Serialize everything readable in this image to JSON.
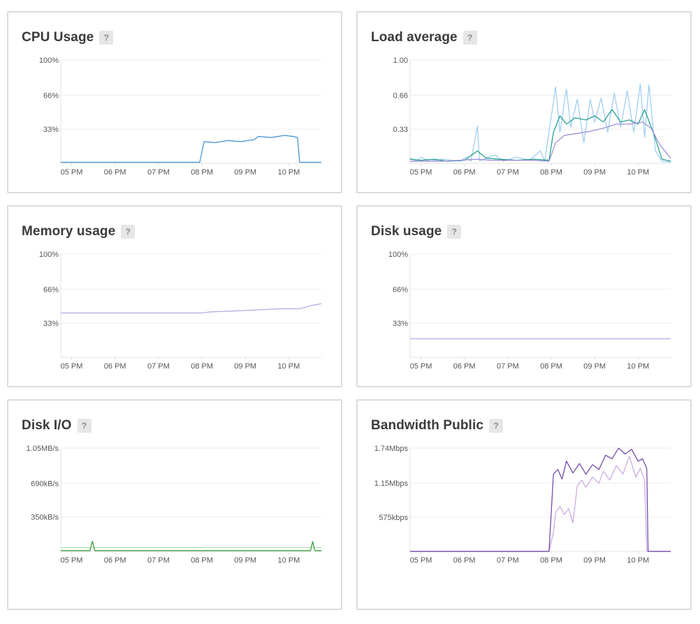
{
  "panels": [
    {
      "key": "cpu",
      "title": "CPU Usage",
      "help": "?",
      "chart_data": {
        "type": "line",
        "x_ticks": [
          "05 PM",
          "06 PM",
          "07 PM",
          "08 PM",
          "09 PM",
          "10 PM"
        ],
        "y_ticks": [
          "100%",
          "66%",
          "33%"
        ],
        "ylim": [
          0,
          100
        ],
        "y_tick_values": [
          100,
          66,
          33
        ],
        "x_ticks_hours": [
          17,
          18,
          19,
          20,
          21,
          22
        ],
        "xlim_hours": [
          16.75,
          22.75
        ],
        "grid": true,
        "series": [
          {
            "color": "#3f8fd6",
            "points": [
              [
                16.75,
                1
              ],
              [
                17.5,
                1
              ],
              [
                18.5,
                1
              ],
              [
                19.5,
                1
              ],
              [
                19.95,
                1
              ],
              [
                20.05,
                21
              ],
              [
                20.3,
                20
              ],
              [
                20.6,
                22
              ],
              [
                20.9,
                21
              ],
              [
                21.2,
                23
              ],
              [
                21.3,
                26
              ],
              [
                21.6,
                25
              ],
              [
                21.9,
                27
              ],
              [
                22.1,
                26
              ],
              [
                22.2,
                25
              ],
              [
                22.25,
                1
              ],
              [
                22.75,
                1
              ]
            ]
          }
        ]
      }
    },
    {
      "key": "load",
      "title": "Load average",
      "help": "?",
      "chart_data": {
        "type": "line",
        "x_ticks": [
          "05 PM",
          "06 PM",
          "07 PM",
          "08 PM",
          "09 PM",
          "10 PM"
        ],
        "y_ticks": [
          "1.00",
          "0.66",
          "0.33"
        ],
        "ylim": [
          0,
          1
        ],
        "y_tick_values": [
          1.0,
          0.66,
          0.33
        ],
        "x_ticks_hours": [
          17,
          18,
          19,
          20,
          21,
          22
        ],
        "xlim_hours": [
          16.75,
          22.75
        ],
        "grid": true,
        "series": [
          {
            "color": "#9ccbef",
            "points": [
              [
                16.75,
                0.05
              ],
              [
                16.9,
                0.02
              ],
              [
                17.0,
                0.06
              ],
              [
                17.2,
                0.02
              ],
              [
                17.5,
                0.04
              ],
              [
                17.9,
                0.02
              ],
              [
                18.05,
                0.06
              ],
              [
                18.15,
                0.02
              ],
              [
                18.3,
                0.36
              ],
              [
                18.35,
                0.02
              ],
              [
                18.5,
                0.05
              ],
              [
                18.7,
                0.08
              ],
              [
                18.9,
                0.02
              ],
              [
                19.2,
                0.06
              ],
              [
                19.5,
                0.03
              ],
              [
                19.75,
                0.12
              ],
              [
                19.85,
                0.02
              ],
              [
                20.0,
                0.45
              ],
              [
                20.1,
                0.74
              ],
              [
                20.2,
                0.3
              ],
              [
                20.35,
                0.72
              ],
              [
                20.45,
                0.35
              ],
              [
                20.6,
                0.62
              ],
              [
                20.75,
                0.2
              ],
              [
                20.9,
                0.62
              ],
              [
                21.0,
                0.4
              ],
              [
                21.15,
                0.63
              ],
              [
                21.3,
                0.3
              ],
              [
                21.45,
                0.68
              ],
              [
                21.6,
                0.35
              ],
              [
                21.75,
                0.7
              ],
              [
                21.9,
                0.3
              ],
              [
                22.05,
                0.77
              ],
              [
                22.15,
                0.25
              ],
              [
                22.25,
                0.76
              ],
              [
                22.4,
                0.12
              ],
              [
                22.55,
                0.02
              ],
              [
                22.75,
                0.01
              ]
            ]
          },
          {
            "color": "#1a9c8c",
            "points": [
              [
                16.75,
                0.04
              ],
              [
                17.0,
                0.03
              ],
              [
                17.3,
                0.04
              ],
              [
                17.6,
                0.02
              ],
              [
                18.0,
                0.03
              ],
              [
                18.3,
                0.12
              ],
              [
                18.5,
                0.05
              ],
              [
                18.8,
                0.04
              ],
              [
                19.2,
                0.03
              ],
              [
                19.6,
                0.04
              ],
              [
                19.95,
                0.03
              ],
              [
                20.05,
                0.3
              ],
              [
                20.2,
                0.46
              ],
              [
                20.35,
                0.38
              ],
              [
                20.55,
                0.44
              ],
              [
                20.8,
                0.42
              ],
              [
                21.0,
                0.46
              ],
              [
                21.2,
                0.4
              ],
              [
                21.4,
                0.52
              ],
              [
                21.6,
                0.4
              ],
              [
                21.8,
                0.42
              ],
              [
                22.0,
                0.38
              ],
              [
                22.15,
                0.52
              ],
              [
                22.35,
                0.3
              ],
              [
                22.55,
                0.04
              ],
              [
                22.75,
                0.02
              ]
            ]
          },
          {
            "color": "#9b87d4",
            "points": [
              [
                16.75,
                0.02
              ],
              [
                17.5,
                0.02
              ],
              [
                18.3,
                0.04
              ],
              [
                18.6,
                0.03
              ],
              [
                19.5,
                0.03
              ],
              [
                19.95,
                0.02
              ],
              [
                20.1,
                0.2
              ],
              [
                20.3,
                0.27
              ],
              [
                20.6,
                0.29
              ],
              [
                20.9,
                0.31
              ],
              [
                21.2,
                0.34
              ],
              [
                21.5,
                0.38
              ],
              [
                21.8,
                0.38
              ],
              [
                22.1,
                0.4
              ],
              [
                22.3,
                0.34
              ],
              [
                22.5,
                0.18
              ],
              [
                22.75,
                0.05
              ]
            ]
          }
        ]
      }
    },
    {
      "key": "mem",
      "title": "Memory usage",
      "help": "?",
      "chart_data": {
        "type": "line",
        "x_ticks": [
          "05 PM",
          "06 PM",
          "07 PM",
          "08 PM",
          "09 PM",
          "10 PM"
        ],
        "y_ticks": [
          "100%",
          "66%",
          "33%"
        ],
        "ylim": [
          0,
          100
        ],
        "y_tick_values": [
          100,
          66,
          33
        ],
        "x_ticks_hours": [
          17,
          18,
          19,
          20,
          21,
          22
        ],
        "xlim_hours": [
          16.75,
          22.75
        ],
        "grid": true,
        "series": [
          {
            "color": "#b7a7e3",
            "points": [
              [
                16.75,
                43
              ],
              [
                17.5,
                43
              ],
              [
                18.5,
                43
              ],
              [
                19.5,
                43
              ],
              [
                20.0,
                43
              ],
              [
                20.2,
                44
              ],
              [
                20.8,
                45
              ],
              [
                21.3,
                46
              ],
              [
                21.8,
                47
              ],
              [
                22.25,
                47
              ],
              [
                22.5,
                50
              ],
              [
                22.75,
                52
              ]
            ]
          }
        ]
      }
    },
    {
      "key": "disk",
      "title": "Disk usage",
      "help": "?",
      "chart_data": {
        "type": "line",
        "x_ticks": [
          "05 PM",
          "06 PM",
          "07 PM",
          "08 PM",
          "09 PM",
          "10 PM"
        ],
        "y_ticks": [
          "100%",
          "66%",
          "33%"
        ],
        "ylim": [
          0,
          100
        ],
        "y_tick_values": [
          100,
          66,
          33
        ],
        "x_ticks_hours": [
          17,
          18,
          19,
          20,
          21,
          22
        ],
        "xlim_hours": [
          16.75,
          22.75
        ],
        "grid": true,
        "series": [
          {
            "color": "#b7a7e3",
            "points": [
              [
                16.75,
                18
              ],
              [
                22.75,
                18
              ]
            ]
          }
        ]
      }
    },
    {
      "key": "io",
      "title": "Disk I/O",
      "help": "?",
      "chart_data": {
        "type": "line",
        "x_ticks": [
          "05 PM",
          "06 PM",
          "07 PM",
          "08 PM",
          "09 PM",
          "10 PM"
        ],
        "y_ticks": [
          "1.05MB/s",
          "690kB/s",
          "350kB/s"
        ],
        "ylim_kBps": [
          0,
          1050
        ],
        "y_tick_values": [
          1050,
          690,
          350
        ],
        "x_ticks_hours": [
          17,
          18,
          19,
          20,
          21,
          22
        ],
        "xlim_hours": [
          16.75,
          22.75
        ],
        "grid": true,
        "series": [
          {
            "color": "#b5dcae",
            "points": [
              [
                16.75,
                38
              ],
              [
                17.5,
                38
              ],
              [
                18.5,
                38
              ],
              [
                19.5,
                38
              ],
              [
                20.05,
                38
              ],
              [
                20.1,
                42
              ],
              [
                21.0,
                42
              ],
              [
                22.0,
                42
              ],
              [
                22.75,
                40
              ]
            ]
          },
          {
            "color": "#2e9b2e",
            "points": [
              [
                16.75,
                8
              ],
              [
                17.42,
                8
              ],
              [
                17.48,
                105
              ],
              [
                17.53,
                8
              ],
              [
                18.5,
                8
              ],
              [
                19.5,
                8
              ],
              [
                20.5,
                8
              ],
              [
                21.5,
                8
              ],
              [
                22.5,
                8
              ],
              [
                22.55,
                100
              ],
              [
                22.6,
                8
              ],
              [
                22.75,
                8
              ]
            ]
          }
        ]
      }
    },
    {
      "key": "bw",
      "title": "Bandwidth Public",
      "help": "?",
      "chart_data": {
        "type": "line",
        "x_ticks": [
          "05 PM",
          "06 PM",
          "07 PM",
          "08 PM",
          "09 PM",
          "10 PM"
        ],
        "y_ticks": [
          "1.74Mbps",
          "1.15Mbps",
          "575kbps"
        ],
        "ylim_kbps": [
          0,
          1740
        ],
        "y_tick_values": [
          1740,
          1150,
          575
        ],
        "x_ticks_hours": [
          17,
          18,
          19,
          20,
          21,
          22
        ],
        "xlim_hours": [
          16.75,
          22.75
        ],
        "grid": true,
        "series": [
          {
            "color": "#c8a7dc",
            "points": [
              [
                16.75,
                0
              ],
              [
                17.5,
                0
              ],
              [
                18.5,
                0
              ],
              [
                19.5,
                0
              ],
              [
                19.95,
                0
              ],
              [
                20.05,
                320
              ],
              [
                20.1,
                650
              ],
              [
                20.2,
                760
              ],
              [
                20.3,
                620
              ],
              [
                20.4,
                720
              ],
              [
                20.5,
                480
              ],
              [
                20.6,
                1100
              ],
              [
                20.7,
                1200
              ],
              [
                20.8,
                1080
              ],
              [
                20.95,
                1250
              ],
              [
                21.1,
                1150
              ],
              [
                21.2,
                1350
              ],
              [
                21.35,
                1200
              ],
              [
                21.5,
                1450
              ],
              [
                21.65,
                1300
              ],
              [
                21.8,
                1600
              ],
              [
                21.95,
                1250
              ],
              [
                22.05,
                1400
              ],
              [
                22.15,
                1200
              ],
              [
                22.2,
                0
              ],
              [
                22.75,
                0
              ]
            ]
          },
          {
            "color": "#6b3fa0",
            "points": [
              [
                16.75,
                0
              ],
              [
                17.5,
                0
              ],
              [
                18.5,
                0
              ],
              [
                19.5,
                0
              ],
              [
                19.95,
                0
              ],
              [
                20.05,
                1300
              ],
              [
                20.15,
                1380
              ],
              [
                20.25,
                1220
              ],
              [
                20.35,
                1520
              ],
              [
                20.5,
                1320
              ],
              [
                20.65,
                1480
              ],
              [
                20.8,
                1300
              ],
              [
                20.95,
                1460
              ],
              [
                21.1,
                1380
              ],
              [
                21.25,
                1620
              ],
              [
                21.4,
                1560
              ],
              [
                21.55,
                1740
              ],
              [
                21.7,
                1640
              ],
              [
                21.85,
                1720
              ],
              [
                22.0,
                1520
              ],
              [
                22.1,
                1560
              ],
              [
                22.2,
                1400
              ],
              [
                22.23,
                0
              ],
              [
                22.75,
                0
              ]
            ]
          }
        ]
      }
    }
  ]
}
